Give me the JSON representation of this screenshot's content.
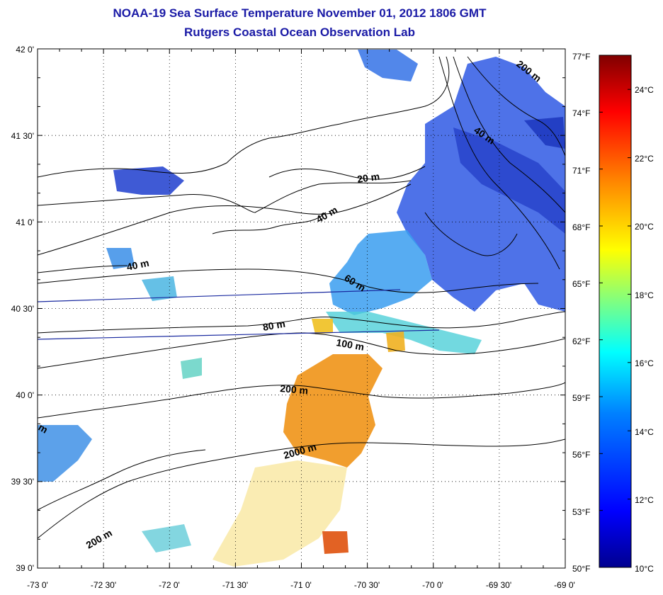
{
  "header": {
    "title": "NOAA-19 Sea Surface Temperature November 01, 2012 1806 GMT",
    "subtitle": "Rutgers Coastal Ocean Observation Lab"
  },
  "map": {
    "lon_range": [
      -73.0,
      -69.0
    ],
    "lat_range": [
      39.0,
      42.0
    ],
    "grid": true,
    "lon_ticks": [
      "-73 0'",
      "-72 30'",
      "-72 0'",
      "-71 30'",
      "-71 0'",
      "-70 30'",
      "-70 0'",
      "-69 30'",
      "-69 0'"
    ],
    "lat_ticks": [
      "39 0'",
      "39 30'",
      "40 0'",
      "40 30'",
      "41 0'",
      "41 30'",
      "42 0'"
    ],
    "contour_labels": [
      "200 m",
      "40 m",
      "20 m",
      "40 m",
      "40 m",
      "60 m",
      "80 m",
      "100 m",
      "200 m",
      "2000 m",
      "200 m",
      "m"
    ]
  },
  "colorbar": {
    "fahrenheit_labels": [
      "77°F",
      "74°F",
      "71°F",
      "68°F",
      "65°F",
      "62°F",
      "59°F",
      "56°F",
      "53°F",
      "50°F"
    ],
    "celsius_labels": [
      "24°C",
      "22°C",
      "20°C",
      "18°C",
      "16°C",
      "14°C",
      "12°C",
      "10°C"
    ],
    "range_c": [
      10,
      25
    ],
    "colors": [
      "#00008f",
      "#0000ff",
      "#0080ff",
      "#00ffff",
      "#80ff80",
      "#ffff00",
      "#ff8000",
      "#ff0000",
      "#800000"
    ]
  },
  "colors": {
    "title": "#1a1aa6",
    "cold": "#2a4fd6",
    "mid": "#36c6d6",
    "warm": "#f08a1c",
    "hot": "#e04a18"
  }
}
